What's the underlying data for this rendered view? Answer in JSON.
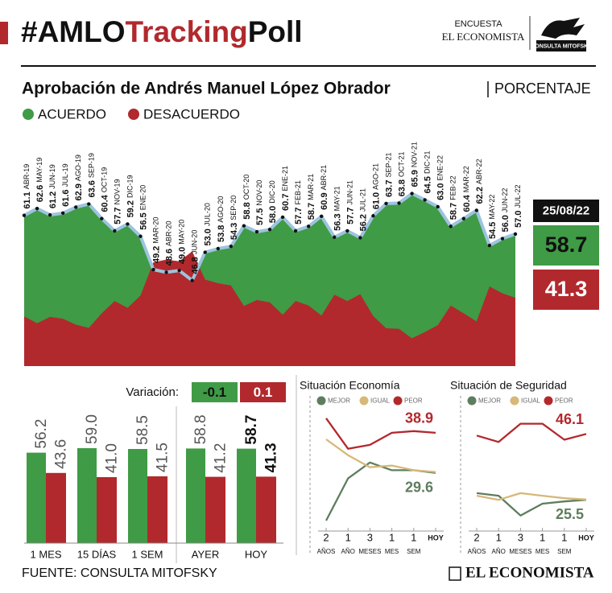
{
  "header": {
    "hashtag_parts": [
      "#AMLO",
      "Tracking",
      "Poll"
    ],
    "logo": {
      "line1": "ENCUESTA",
      "line2": "EL ECONOMISTA",
      "brand": "CONSULTA MITOFSKY"
    }
  },
  "title": "Aprobación de Andrés Manuel López Obrador",
  "unit": "PORCENTAJE",
  "chart_data": [
    {
      "type": "area",
      "categories": [
        "ABR-19",
        "MAY-19",
        "JUN-19",
        "JUL-19",
        "AGO-19",
        "SEP-19",
        "OCT-19",
        "NOV-19",
        "DIC-19",
        "ENE-20",
        "MAR-20",
        "ABR-20",
        "MAY-20",
        "JUN-20",
        "JUL-20",
        "AGO-20",
        "SEP-20",
        "OCT-20",
        "NOV-20",
        "DIC-20",
        "ENE-21",
        "FEB-21",
        "MAR-21",
        "ABR-21",
        "MAY-21",
        "JUN-21",
        "JUL-21",
        "AGO-21",
        "SEP-21",
        "OCT-21",
        "NOV-21",
        "DIC-21",
        "ENE-22",
        "FEB-22",
        "MAR-22",
        "ABR-22",
        "MAY-22",
        "JUN-22",
        "JUL-22"
      ],
      "series": [
        {
          "name": "ACUERDO",
          "color": "#3f9b45",
          "values": [
            61.1,
            62.6,
            61.2,
            61.6,
            62.9,
            63.6,
            60.4,
            57.7,
            59.2,
            56.5,
            49.2,
            48.6,
            49.0,
            46.8,
            53.0,
            53.8,
            54.3,
            58.8,
            57.5,
            58.0,
            60.7,
            57.7,
            58.7,
            60.9,
            56.3,
            57.7,
            56.2,
            61.0,
            63.7,
            63.8,
            65.9,
            64.5,
            63.0,
            58.7,
            60.4,
            62.2,
            54.5,
            56.0,
            57.0
          ],
          "value_labels": [
            "61.1",
            "62.6",
            "61.2",
            "61.6",
            "62.9",
            "63.6",
            "60.4",
            "57.7",
            "59.2",
            "56.5",
            "49.2",
            "48.6",
            "49.0",
            "46.8",
            "53.0",
            "53.8",
            "54.3",
            "58.8",
            "57.5",
            "58.0",
            "60.7",
            "57.7",
            "58.7",
            "60.9",
            "56.3",
            "57.7",
            "56.2",
            "61.0",
            "63.7",
            "63.8",
            "65.9",
            "64.5",
            "63.0",
            "58.7",
            "60.4",
            "62.2",
            "54.5",
            "56.0",
            "57.0"
          ]
        },
        {
          "name": "DESACUERDO",
          "color": "#b1292d",
          "values": [
            38.9,
            37.4,
            38.8,
            38.4,
            37.1,
            36.4,
            39.6,
            42.3,
            40.8,
            43.5,
            50.8,
            51.4,
            51.0,
            53.2,
            47.0,
            46.2,
            45.7,
            41.2,
            42.5,
            42.0,
            39.3,
            42.3,
            41.3,
            39.1,
            43.7,
            42.3,
            43.8,
            39.0,
            36.3,
            36.2,
            34.1,
            35.5,
            37.0,
            41.3,
            39.6,
            37.8,
            45.5,
            44.0,
            43.0
          ]
        }
      ],
      "line_color": "#9cc4de",
      "ylim": [
        28,
        72
      ],
      "latest": {
        "date": "25/08/22",
        "values": [
          58.7,
          41.3
        ]
      }
    },
    {
      "type": "bar",
      "categories": [
        "1 MES",
        "15 DÍAS",
        "1 SEM",
        "AYER",
        "HOY"
      ],
      "series": [
        {
          "name": "ACUERDO",
          "color": "#3f9b45",
          "values": [
            56.2,
            59.0,
            58.5,
            58.8,
            58.7
          ],
          "value_labels": [
            "56.2",
            "59.0",
            "58.5",
            "58.8",
            "58.7"
          ]
        },
        {
          "name": "DESACUERDO",
          "color": "#b1292d",
          "values": [
            43.6,
            41.0,
            41.5,
            41.2,
            41.3
          ],
          "value_labels": [
            "43.6",
            "41.0",
            "41.5",
            "41.2",
            "41.3"
          ]
        }
      ],
      "ylim": [
        0,
        80
      ],
      "variation_label": "Variación:",
      "variation": [
        -0.1,
        0.1
      ]
    },
    {
      "type": "line",
      "title": "Situación Economía",
      "categories": [
        "2",
        "1",
        "3",
        "1",
        "1",
        "HOY"
      ],
      "category_sublabels": [
        "AÑOS",
        "AÑO",
        "MESES",
        "MES",
        "SEM",
        null
      ],
      "series": [
        {
          "name": "MEJOR",
          "color": "#5e7d5e",
          "values": [
            18.5,
            28.3,
            32.0,
            30.2,
            30.2,
            29.6
          ]
        },
        {
          "name": "IGUAL",
          "color": "#d6b878",
          "values": [
            37.4,
            33.7,
            30.9,
            31.3,
            30.2,
            29.8
          ]
        },
        {
          "name": "PEOR",
          "color": "#b3282d",
          "values": [
            42.3,
            35.2,
            36.1,
            38.9,
            39.3,
            38.9
          ]
        }
      ],
      "end_label_series": [
        0,
        2
      ],
      "ylim": [
        17,
        46
      ]
    },
    {
      "type": "line",
      "title": "Situación de Seguridad",
      "categories": [
        "2",
        "1",
        "3",
        "1",
        "1",
        "HOY"
      ],
      "category_sublabels": [
        "AÑOS",
        "AÑO",
        "MESES",
        "MES",
        "SEM",
        null
      ],
      "series": [
        {
          "name": "MEJOR",
          "color": "#5e7d5e",
          "values": [
            27.6,
            26.8,
            20.6,
            24.3,
            25.0,
            25.5
          ]
        },
        {
          "name": "IGUAL",
          "color": "#d6b878",
          "values": [
            26.8,
            25.5,
            27.6,
            26.8,
            26.0,
            25.6
          ]
        },
        {
          "name": "PEOR",
          "color": "#b3282d",
          "values": [
            45.6,
            43.6,
            49.3,
            49.3,
            44.3,
            46.1
          ]
        }
      ],
      "end_label_series": [
        0,
        2
      ],
      "ylim": [
        17,
        56
      ]
    }
  ],
  "footer": {
    "source": "FUENTE: CONSULTA MITOFSKY",
    "brand": "EL ECONOMISTA"
  }
}
